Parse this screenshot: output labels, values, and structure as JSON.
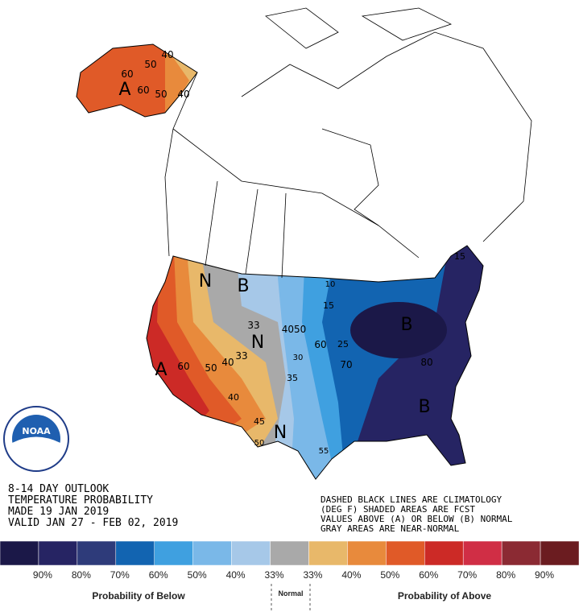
{
  "outlook": {
    "title": "8-14 DAY OUTLOOK",
    "subtitle": "TEMPERATURE PROBABILITY",
    "made": "MADE  19 JAN 2019",
    "valid": "VALID  JAN 27 - FEB 02, 2019"
  },
  "notes": [
    "DASHED BLACK LINES ARE CLIMATOLOGY",
    "(DEG F) SHADED AREAS ARE FCST",
    "VALUES ABOVE (A) OR BELOW (B) NORMAL",
    "GRAY AREAS ARE NEAR-NORMAL"
  ],
  "logo": "NOAA",
  "map": {
    "labels": [
      "A",
      "A",
      "B",
      "B",
      "B",
      "N",
      "N",
      "N",
      "40",
      "50",
      "60",
      "60",
      "50",
      "40",
      "33",
      "33",
      "4050",
      "30",
      "35",
      "60",
      "70",
      "25",
      "15",
      "10",
      "80",
      "15",
      "60",
      "50",
      "40",
      "40",
      "45",
      "50",
      "55"
    ]
  },
  "legend": {
    "colors": [
      "#1b1848",
      "#262463",
      "#2e3b7a",
      "#1264b1",
      "#3fa0e0",
      "#7ab8e8",
      "#a6c8e8",
      "#a9a9a9",
      "#e8b86a",
      "#e88a3c",
      "#e05a28",
      "#cc2a26",
      "#d02e45",
      "#8b2a33",
      "#6b1c20"
    ],
    "labels": [
      "90%",
      "80%",
      "70%",
      "60%",
      "50%",
      "40%",
      "33%",
      "33%",
      "40%",
      "50%",
      "60%",
      "70%",
      "80%",
      "90%"
    ],
    "below": "Probability of Below",
    "normal": "Normal",
    "above": "Probability of Above"
  }
}
